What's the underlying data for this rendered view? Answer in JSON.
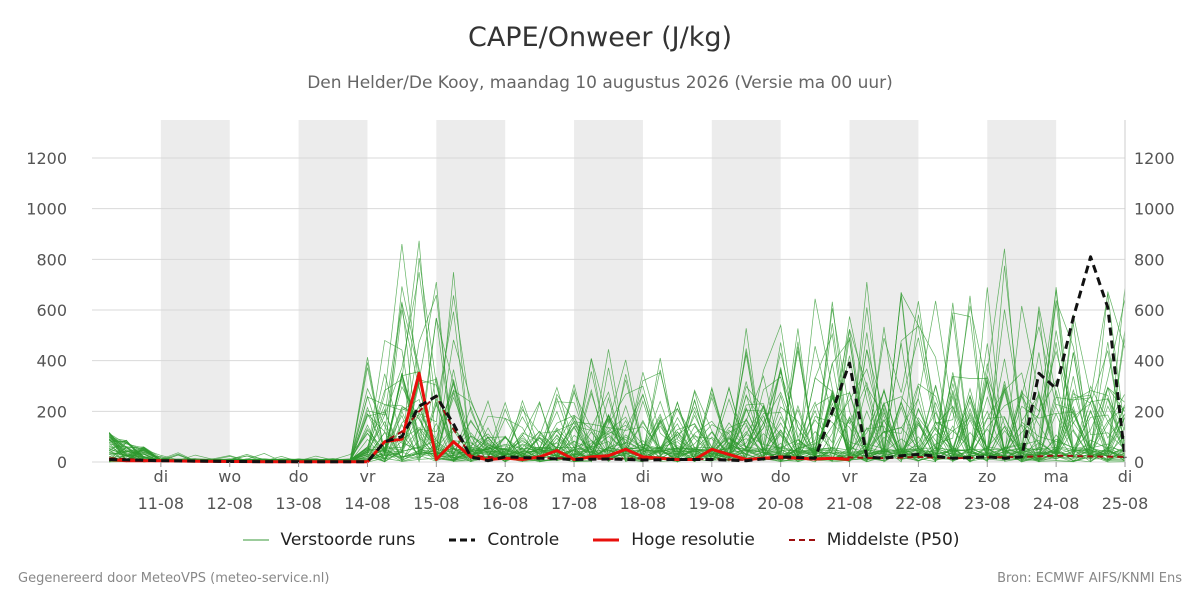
{
  "title": "CAPE/Onweer (J/kg)",
  "subtitle": "Den Helder/De Kooy, maandag 10 augustus 2026 (Versie ma 00 uur)",
  "footer": {
    "left": "Gegenereerd door MeteoVPS (meteo-service.nl)",
    "right": "Bron: ECMWF AIFS/KNMI Ens"
  },
  "legend": [
    {
      "label": "Verstoorde runs",
      "color": "#3a9a3a",
      "style": "thin"
    },
    {
      "label": "Controle",
      "color": "#111111",
      "style": "dashed-bold"
    },
    {
      "label": "Hoge resolutie",
      "color": "#e8100c",
      "style": "solid-bold"
    },
    {
      "label": "Middelste (P50)",
      "color": "#9e0f0f",
      "style": "dashed"
    }
  ],
  "chart_data": {
    "type": "line",
    "x_unit": "days since 10-08 00 uur",
    "x_ticks": [
      {
        "weekday": "di",
        "date": "11-08"
      },
      {
        "weekday": "wo",
        "date": "12-08"
      },
      {
        "weekday": "do",
        "date": "13-08"
      },
      {
        "weekday": "vr",
        "date": "14-08"
      },
      {
        "weekday": "za",
        "date": "15-08"
      },
      {
        "weekday": "zo",
        "date": "16-08"
      },
      {
        "weekday": "ma",
        "date": "17-08"
      },
      {
        "weekday": "di",
        "date": "18-08"
      },
      {
        "weekday": "wo",
        "date": "19-08"
      },
      {
        "weekday": "do",
        "date": "20-08"
      },
      {
        "weekday": "vr",
        "date": "21-08"
      },
      {
        "weekday": "za",
        "date": "22-08"
      },
      {
        "weekday": "zo",
        "date": "23-08"
      },
      {
        "weekday": "ma",
        "date": "24-08"
      },
      {
        "weekday": "di",
        "date": "25-08"
      }
    ],
    "xlim": [
      0.25,
      15
    ],
    "ylim": [
      0,
      1350
    ],
    "y_ticks": [
      0,
      200,
      400,
      600,
      800,
      1000,
      1200
    ],
    "shaded_days": [
      "11-08",
      "13-08",
      "15-08",
      "17-08",
      "19-08",
      "21-08",
      "23-08"
    ],
    "ensemble_count": 50,
    "ensemble_color": "#2f9a2f",
    "controle": {
      "name": "Controle",
      "color": "#111111",
      "x": [
        0.25,
        1,
        2,
        3,
        4,
        4.25,
        4.5,
        4.75,
        5,
        5.25,
        5.5,
        5.75,
        6,
        6.5,
        7,
        7.5,
        8,
        8.5,
        9,
        9.5,
        10,
        10.5,
        10.75,
        11,
        11.25,
        11.5,
        11.75,
        12,
        12.5,
        13,
        13.25,
        13.5,
        13.75,
        14,
        14.25,
        14.5,
        14.75,
        15
      ],
      "y": [
        10,
        5,
        2,
        1,
        1,
        80,
        100,
        220,
        260,
        150,
        20,
        5,
        20,
        15,
        10,
        12,
        8,
        10,
        10,
        5,
        20,
        15,
        200,
        390,
        20,
        15,
        25,
        30,
        15,
        20,
        15,
        20,
        350,
        290,
        570,
        810,
        610,
        15
      ]
    },
    "hoge_resolutie": {
      "name": "Hoge resolutie",
      "color": "#e8100c",
      "x": [
        0.25,
        0.5,
        1,
        1.5,
        2,
        2.5,
        3,
        3.5,
        4,
        4.25,
        4.5,
        4.75,
        5,
        5.25,
        5.5,
        5.75,
        6,
        6.25,
        6.5,
        6.75,
        7,
        7.25,
        7.5,
        7.75,
        8,
        8.25,
        8.5,
        8.75,
        9,
        9.25,
        9.5,
        9.75,
        10,
        10.25,
        10.5,
        10.75,
        11
      ],
      "y": [
        10,
        5,
        5,
        3,
        2,
        1,
        1,
        1,
        1,
        80,
        90,
        350,
        10,
        80,
        20,
        10,
        15,
        10,
        20,
        45,
        10,
        20,
        25,
        50,
        20,
        15,
        10,
        10,
        50,
        30,
        10,
        15,
        20,
        15,
        12,
        15,
        10
      ]
    },
    "p50": {
      "name": "Middelste (P50)",
      "color": "#9e0f0f",
      "x": [
        0.25,
        0.75,
        1,
        2,
        3,
        4,
        4.25,
        4.5,
        4.75,
        5,
        5.25,
        5.5,
        5.75,
        6,
        7,
        7.5,
        8,
        8.5,
        9,
        9.5,
        10,
        10.5,
        11,
        11.5,
        12,
        12.5,
        13,
        13.5,
        14,
        14.5,
        15
      ],
      "y": [
        15,
        8,
        5,
        2,
        1,
        1,
        80,
        120,
        200,
        260,
        130,
        25,
        20,
        15,
        15,
        12,
        15,
        10,
        12,
        8,
        15,
        10,
        18,
        15,
        20,
        15,
        18,
        20,
        25,
        22,
        20
      ]
    }
  }
}
